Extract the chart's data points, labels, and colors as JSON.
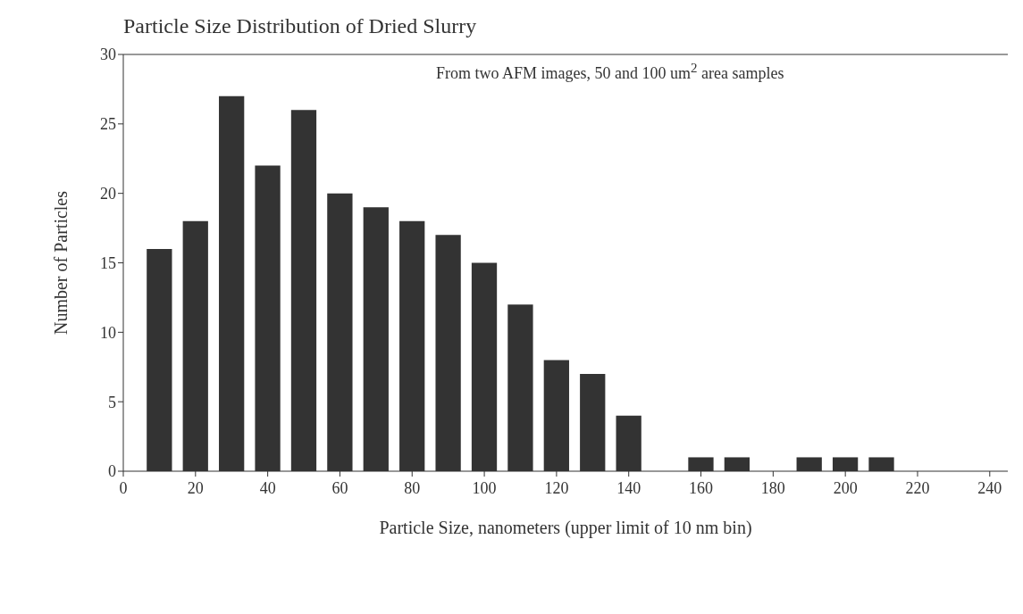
{
  "chart_data": {
    "type": "bar",
    "title": "Particle Size Distribution of Dried Slurry",
    "xlabel": "Particle Size, nanometers (upper limit of 10 nm bin)",
    "ylabel": "Number of Particles",
    "annotations": [
      "From two AFM images, 50 and 100 um$^{2}$ area samples"
    ],
    "x": [
      10,
      20,
      30,
      40,
      50,
      60,
      70,
      80,
      90,
      100,
      110,
      120,
      130,
      140,
      150,
      160,
      170,
      180,
      190,
      200,
      210
    ],
    "values": [
      16,
      18,
      27,
      22,
      26,
      20,
      19,
      18,
      17,
      15,
      12,
      8,
      7,
      4,
      0,
      1,
      1,
      0,
      1,
      1,
      1
    ],
    "color": "#333333",
    "xlim": [
      0,
      245
    ],
    "xticks": [
      0,
      20,
      40,
      60,
      80,
      100,
      120,
      140,
      160,
      180,
      200,
      220,
      240
    ],
    "ylim": [
      0,
      30
    ],
    "yticks": [
      0,
      5,
      10,
      15,
      20,
      25,
      30
    ],
    "grid": false,
    "legend": false
  }
}
